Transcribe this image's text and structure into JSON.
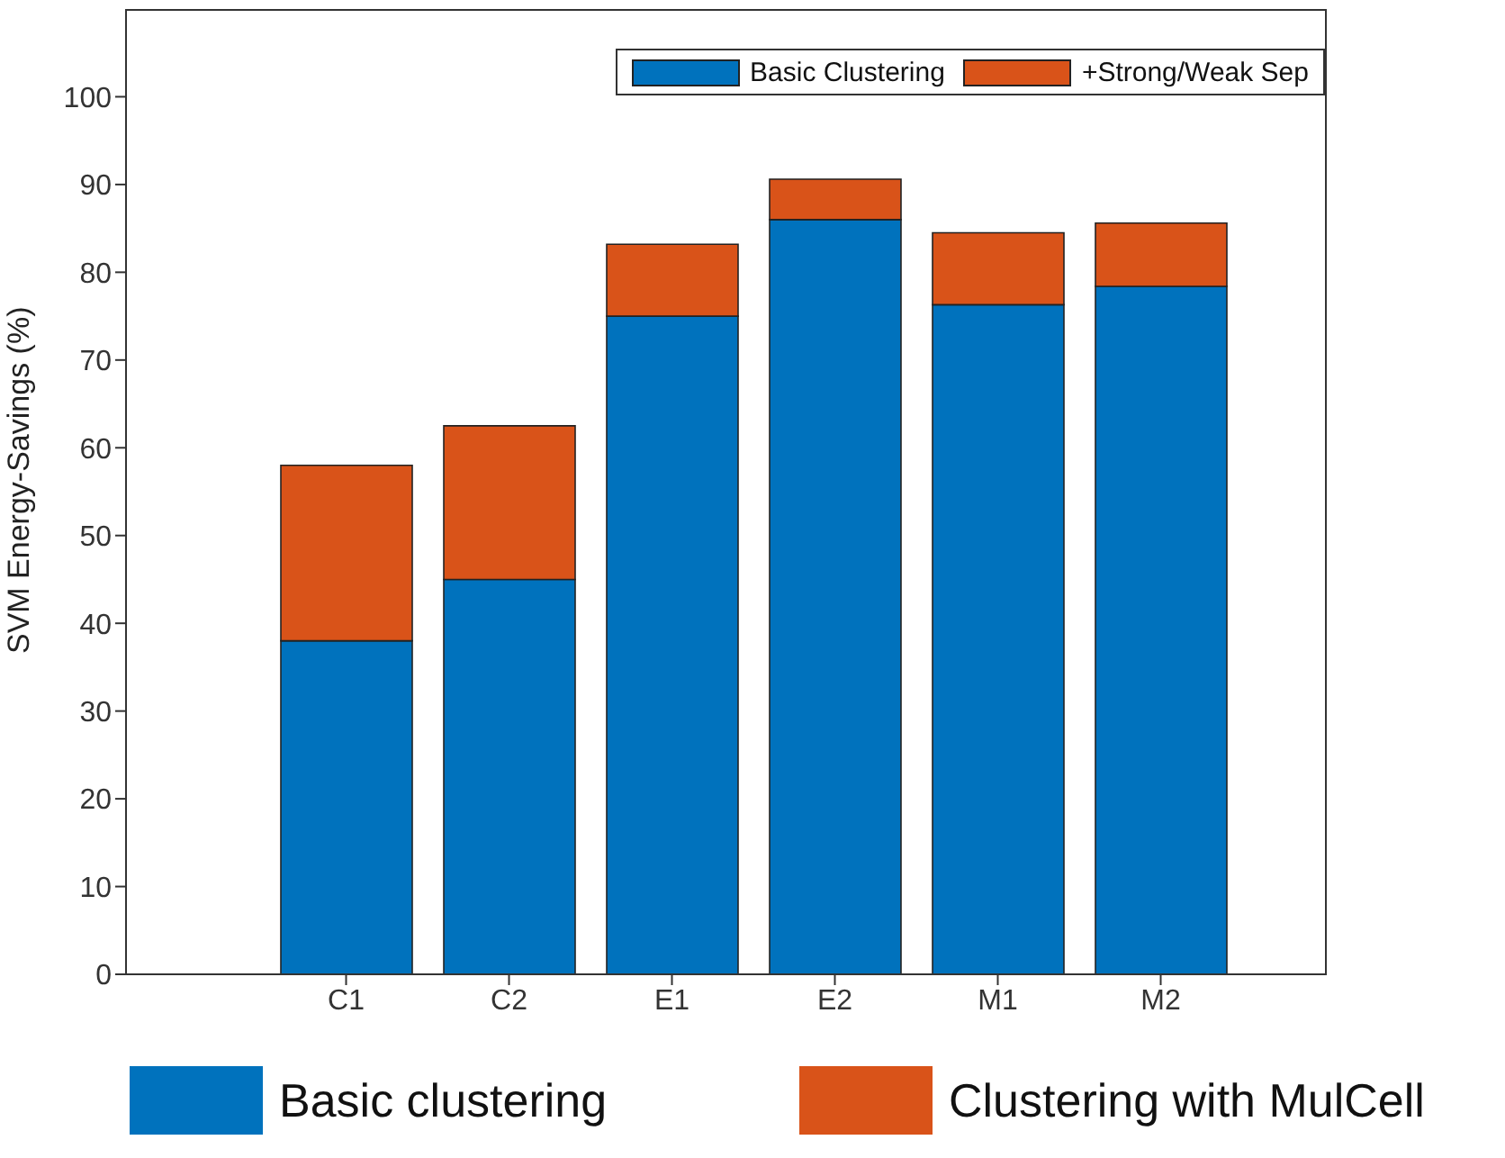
{
  "chart_data": {
    "type": "bar",
    "stacked": true,
    "ylabel": "SVM Energy-Savings (%)",
    "categories": [
      "C1",
      "C2",
      "E1",
      "E2",
      "M1",
      "M2"
    ],
    "series": [
      {
        "name": "Basic Clustering",
        "color": "#0072bd",
        "values": [
          38,
          45,
          75,
          86,
          76.3,
          78.4
        ]
      },
      {
        "name": "+Strong/Weak Sep",
        "color": "#d95319",
        "values": [
          20,
          17.5,
          8.2,
          4.6,
          8.2,
          7.2
        ]
      }
    ],
    "ylim": [
      0,
      110
    ],
    "yticks": [
      0,
      10,
      20,
      30,
      40,
      50,
      60,
      70,
      80,
      90,
      100
    ],
    "grid": false,
    "legend": "top right",
    "annotations": [
      "Basic clustering",
      "Clustering with MulCell"
    ]
  }
}
